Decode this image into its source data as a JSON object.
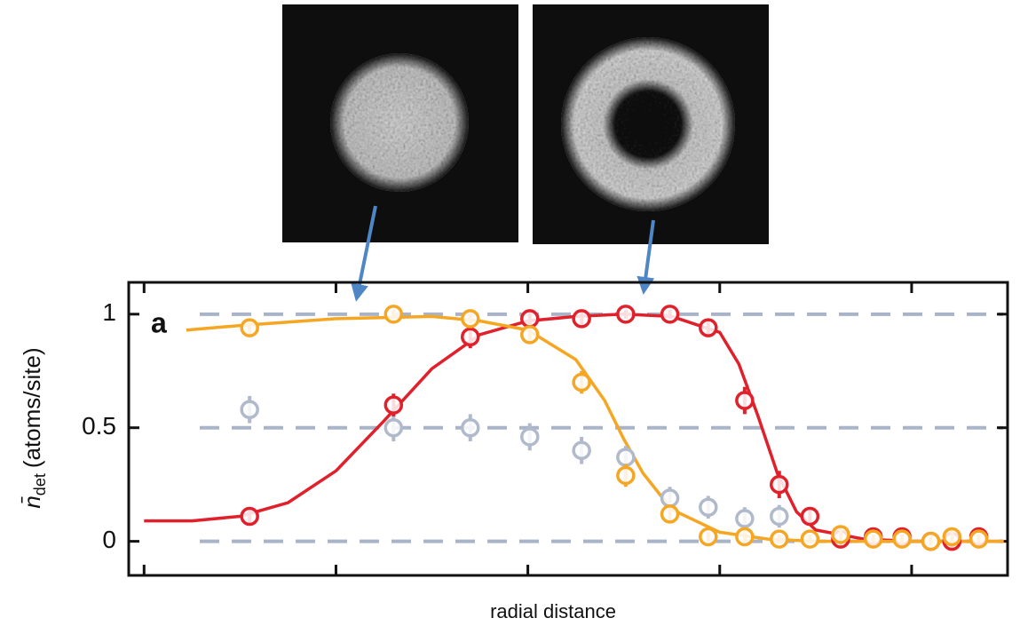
{
  "chart_data": {
    "type": "scatter",
    "panel_label": "a",
    "xlabel": "radial distance",
    "ylabel": {
      "symbol": "n̄",
      "subscript": "det",
      "unit": "(atoms/site)"
    },
    "xlim": [
      -0.08,
      4.5
    ],
    "xticks": [
      0,
      1,
      2,
      3,
      4
    ],
    "ylim": [
      -0.15,
      1.14
    ],
    "yticks": [
      0,
      0.5,
      1
    ],
    "grid": true,
    "series": [
      {
        "color": "#b0bacb",
        "x": [
          0.55,
          1.3,
          1.7,
          2.01,
          2.28,
          2.51,
          2.74,
          2.94,
          3.13,
          3.31
        ],
        "values": [
          0.58,
          0.5,
          0.5,
          0.46,
          0.4,
          0.37,
          0.19,
          0.15,
          0.1,
          0.11
        ],
        "errors": [
          0.06,
          0.06,
          0.06,
          0.06,
          0.06,
          0.05,
          0.05,
          0.05,
          0.05,
          0.05
        ]
      },
      {
        "color": "#e0202a",
        "x": [
          0.55,
          1.3,
          1.7,
          2.01,
          2.28,
          2.51,
          2.74,
          2.94,
          3.13,
          3.31,
          3.47,
          3.63,
          3.8,
          3.95,
          4.1,
          4.21,
          4.35
        ],
        "values": [
          0.11,
          0.6,
          0.9,
          0.98,
          0.98,
          1.0,
          1.0,
          0.94,
          0.62,
          0.25,
          0.11,
          0.01,
          0.02,
          0.02,
          0.0,
          0.0,
          0.02
        ],
        "errors": [
          0.04,
          0.05,
          0.05,
          0.03,
          0.03,
          0.02,
          0.02,
          0.03,
          0.06,
          0.06,
          0.04,
          0.03,
          0.03,
          0.03,
          0.03,
          0.03,
          0.04
        ]
      },
      {
        "color": "#f5a623",
        "x": [
          0.55,
          1.3,
          1.7,
          2.01,
          2.28,
          2.51,
          2.74,
          2.94,
          3.13,
          3.31,
          3.47,
          3.63,
          3.8,
          3.95,
          4.1,
          4.21,
          4.35
        ],
        "values": [
          0.94,
          1.0,
          0.98,
          0.91,
          0.7,
          0.29,
          0.12,
          0.02,
          0.02,
          0.01,
          0.01,
          0.03,
          0.01,
          0.01,
          0.0,
          0.02,
          0.01
        ],
        "errors": [
          0.03,
          0.02,
          0.02,
          0.03,
          0.05,
          0.05,
          0.04,
          0.02,
          0.02,
          0.02,
          0.02,
          0.03,
          0.02,
          0.02,
          0.02,
          0.03,
          0.02
        ]
      }
    ],
    "fits": [
      {
        "color": "#e0202a",
        "x": [
          0,
          0.25,
          0.5,
          0.75,
          1.0,
          1.25,
          1.5,
          1.75,
          2.0,
          2.25,
          2.5,
          2.75,
          3.0,
          3.1,
          3.2,
          3.3,
          3.4,
          3.5,
          3.75,
          4.0,
          4.48
        ],
        "values": [
          0.09,
          0.09,
          0.11,
          0.17,
          0.31,
          0.53,
          0.76,
          0.91,
          0.97,
          0.99,
          1.0,
          0.99,
          0.92,
          0.78,
          0.55,
          0.3,
          0.13,
          0.05,
          0.01,
          0.0,
          0.0
        ]
      },
      {
        "color": "#f5a623",
        "x": [
          0.22,
          0.5,
          1.0,
          1.5,
          1.75,
          2.0,
          2.25,
          2.4,
          2.5,
          2.6,
          2.75,
          3.0,
          3.25,
          3.5,
          4.48
        ],
        "values": [
          0.93,
          0.95,
          0.98,
          0.99,
          0.97,
          0.93,
          0.8,
          0.62,
          0.45,
          0.3,
          0.14,
          0.04,
          0.01,
          0.0,
          0.0
        ]
      }
    ]
  }
}
